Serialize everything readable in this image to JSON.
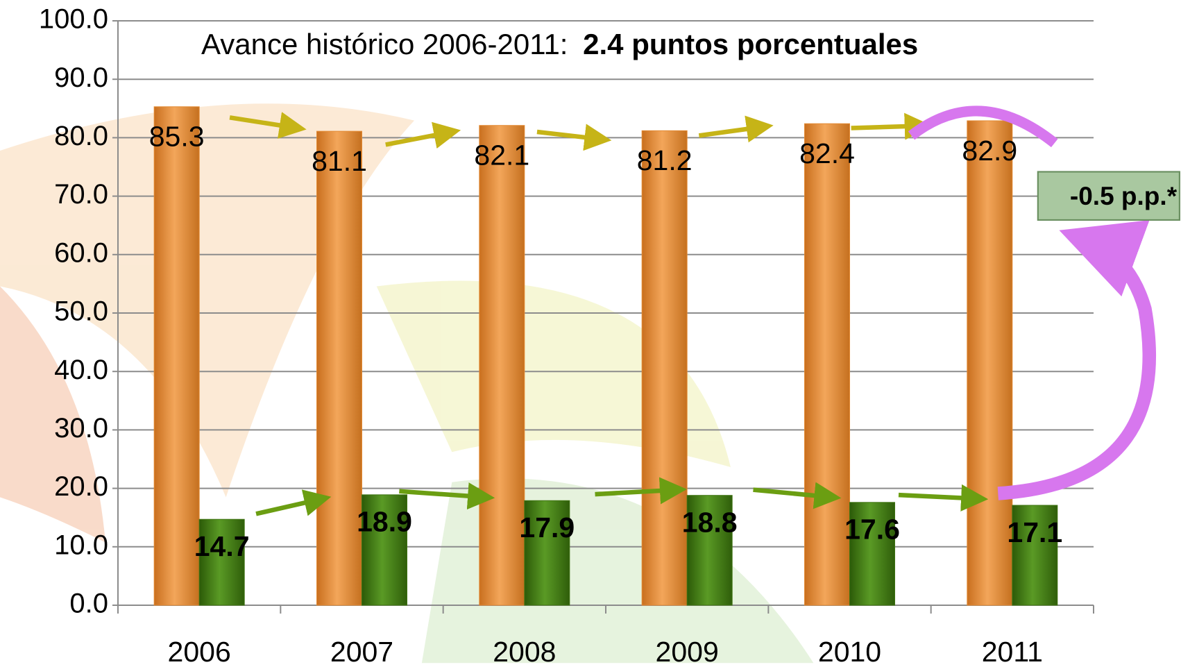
{
  "chart_data": {
    "type": "bar",
    "title": {
      "text": "Avance histórico 2006-2011:",
      "highlight": "2.4 puntos porcentuales"
    },
    "categories": [
      "2006",
      "2007",
      "2008",
      "2009",
      "2010",
      "2011"
    ],
    "series": [
      {
        "color": "#e38a33",
        "values": [
          85.3,
          81.1,
          82.1,
          81.2,
          82.4,
          82.9
        ]
      },
      {
        "color": "#3f7412",
        "values": [
          14.7,
          18.9,
          17.9,
          18.8,
          17.6,
          17.1
        ]
      }
    ],
    "ylim": [
      0,
      100
    ],
    "yticks": [
      {
        "value": 0,
        "label": "0.0"
      },
      {
        "value": 10,
        "label": "10.0"
      },
      {
        "value": 20,
        "label": "20.0"
      },
      {
        "value": 30,
        "label": "30.0"
      },
      {
        "value": 40,
        "label": "40.0"
      },
      {
        "value": 50,
        "label": "50.0"
      },
      {
        "value": 60,
        "label": "60.0"
      },
      {
        "value": 70,
        "label": "70.0"
      },
      {
        "value": 80,
        "label": "80.0"
      },
      {
        "value": 90,
        "label": "90.0"
      },
      {
        "value": 100,
        "label": "100.0"
      }
    ],
    "grid": true,
    "annotation": "-0.5 p.p.*"
  }
}
